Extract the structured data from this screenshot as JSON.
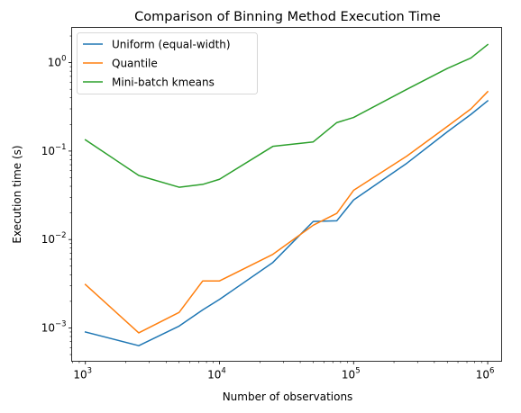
{
  "chart_data": {
    "type": "line",
    "title": "Comparison of Binning Method Execution Time",
    "xlabel": "Number of observations",
    "ylabel": "Execution time (s)",
    "xscale": "log",
    "yscale": "log",
    "xlim": [
      790,
      1270000
    ],
    "ylim": [
      0.00042,
      2.5
    ],
    "grid": false,
    "legend_position": "top-left",
    "x_ticks": [
      {
        "value": 1000,
        "base": "10",
        "exp": "3"
      },
      {
        "value": 10000,
        "base": "10",
        "exp": "4"
      },
      {
        "value": 100000,
        "base": "10",
        "exp": "5"
      },
      {
        "value": 1000000,
        "base": "10",
        "exp": "6"
      }
    ],
    "y_ticks": [
      {
        "value": 0.001,
        "base": "10",
        "exp": "−3"
      },
      {
        "value": 0.01,
        "base": "10",
        "exp": "−2"
      },
      {
        "value": 0.1,
        "base": "10",
        "exp": "−1"
      },
      {
        "value": 1,
        "base": "10",
        "exp": "0"
      }
    ],
    "x": [
      1000,
      2500,
      5000,
      7500,
      10000,
      25000,
      50000,
      75000,
      100000,
      250000,
      500000,
      750000,
      1000000
    ],
    "series": [
      {
        "name": "Uniform (equal-width)",
        "color": "#1f77b4",
        "values": [
          0.0009,
          0.00063,
          0.00105,
          0.0016,
          0.0021,
          0.0055,
          0.016,
          0.0163,
          0.028,
          0.073,
          0.165,
          0.26,
          0.37
        ]
      },
      {
        "name": "Quantile",
        "color": "#ff7f0e",
        "values": [
          0.0031,
          0.00088,
          0.0015,
          0.0034,
          0.0034,
          0.0068,
          0.0145,
          0.0198,
          0.036,
          0.088,
          0.19,
          0.3,
          0.47
        ]
      },
      {
        "name": "Mini-batch kmeans",
        "color": "#2ca02c",
        "values": [
          0.134,
          0.053,
          0.039,
          0.042,
          0.048,
          0.113,
          0.127,
          0.21,
          0.24,
          0.5,
          0.86,
          1.13,
          1.6
        ]
      }
    ]
  }
}
